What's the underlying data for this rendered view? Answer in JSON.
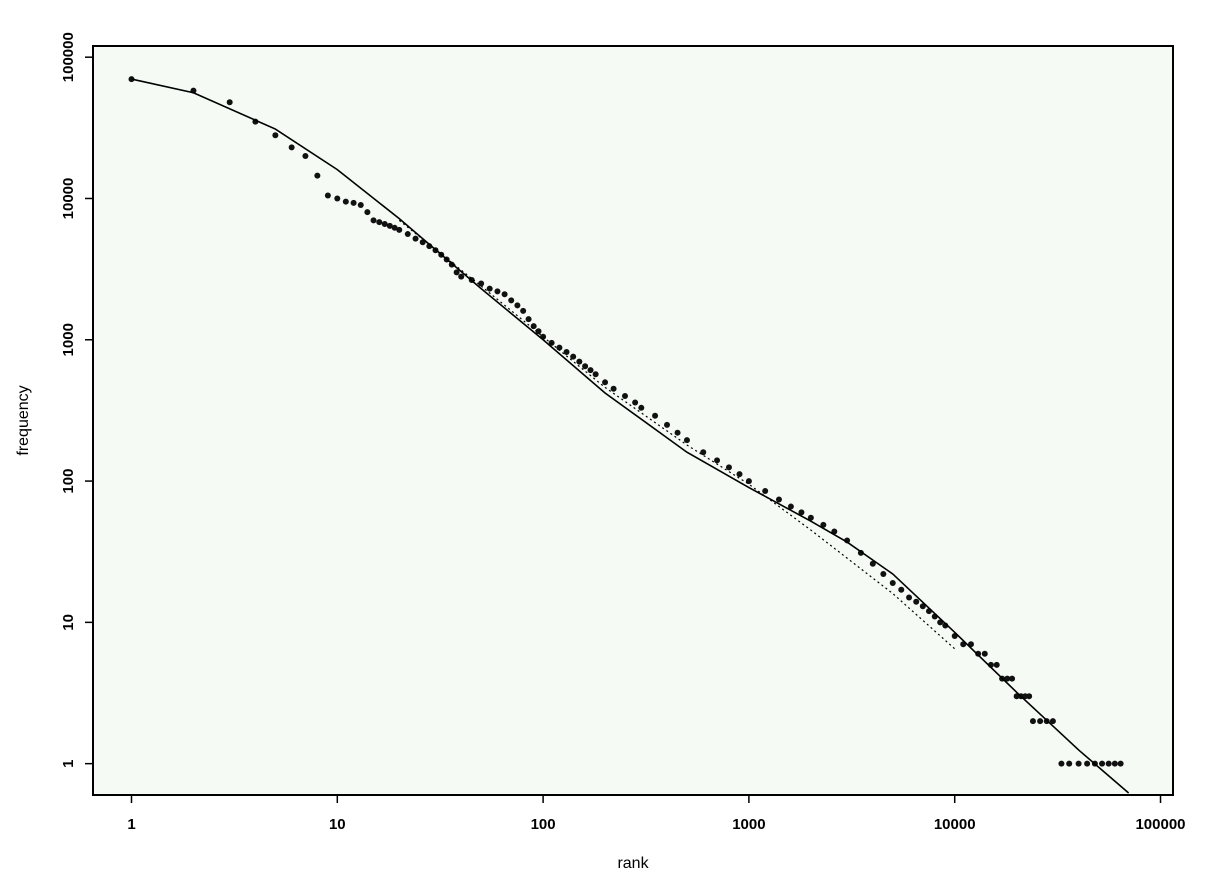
{
  "chart_data": {
    "type": "scatter",
    "title": "",
    "xlabel": "rank",
    "ylabel": "frequency",
    "x_scale": "log",
    "y_scale": "log",
    "xlim": [
      0.65,
      115000
    ],
    "ylim": [
      0.6,
      120000
    ],
    "x_ticks": [
      1,
      10,
      100,
      1000,
      10000,
      100000
    ],
    "x_tick_labels": [
      "1",
      "10",
      "100",
      "1000",
      "10000",
      "100000"
    ],
    "y_ticks": [
      1,
      10,
      100,
      1000,
      10000,
      100000
    ],
    "y_tick_labels": [
      "1",
      "10",
      "100",
      "1000",
      "10000",
      "100000"
    ],
    "grid": false,
    "legend": "none",
    "background_color": "#f5faf5",
    "series": [
      {
        "kind": "points",
        "color": "#111111",
        "points": [
          [
            1,
            70000
          ],
          [
            2,
            58000
          ],
          [
            3,
            48000
          ],
          [
            4,
            35000
          ],
          [
            5,
            28000
          ],
          [
            6,
            23000
          ],
          [
            7,
            20000
          ],
          [
            8,
            14500
          ],
          [
            9,
            10500
          ],
          [
            10,
            10000
          ],
          [
            11,
            9500
          ],
          [
            12,
            9300
          ],
          [
            13,
            9000
          ],
          [
            14,
            8000
          ],
          [
            15,
            7000
          ],
          [
            16,
            6800
          ],
          [
            17,
            6600
          ],
          [
            18,
            6400
          ],
          [
            19,
            6200
          ],
          [
            20,
            6000
          ],
          [
            22,
            5600
          ],
          [
            24,
            5200
          ],
          [
            26,
            4900
          ],
          [
            28,
            4600
          ],
          [
            30,
            4300
          ],
          [
            32,
            4000
          ],
          [
            34,
            3700
          ],
          [
            36,
            3400
          ],
          [
            38,
            3000
          ],
          [
            40,
            2800
          ],
          [
            45,
            2650
          ],
          [
            50,
            2500
          ],
          [
            55,
            2300
          ],
          [
            60,
            2200
          ],
          [
            65,
            2100
          ],
          [
            70,
            1900
          ],
          [
            75,
            1750
          ],
          [
            80,
            1600
          ],
          [
            85,
            1400
          ],
          [
            90,
            1250
          ],
          [
            95,
            1150
          ],
          [
            100,
            1050
          ],
          [
            110,
            950
          ],
          [
            120,
            880
          ],
          [
            130,
            820
          ],
          [
            140,
            760
          ],
          [
            150,
            700
          ],
          [
            160,
            650
          ],
          [
            170,
            610
          ],
          [
            180,
            570
          ],
          [
            200,
            500
          ],
          [
            220,
            450
          ],
          [
            250,
            400
          ],
          [
            280,
            360
          ],
          [
            300,
            330
          ],
          [
            350,
            290
          ],
          [
            400,
            250
          ],
          [
            450,
            220
          ],
          [
            500,
            195
          ],
          [
            600,
            160
          ],
          [
            700,
            140
          ],
          [
            800,
            125
          ],
          [
            900,
            112
          ],
          [
            1000,
            100
          ],
          [
            1200,
            85
          ],
          [
            1400,
            74
          ],
          [
            1600,
            66
          ],
          [
            1800,
            60
          ],
          [
            2000,
            55
          ],
          [
            2300,
            49
          ],
          [
            2600,
            44
          ],
          [
            3000,
            38
          ],
          [
            3500,
            31
          ],
          [
            4000,
            26
          ],
          [
            4500,
            22
          ],
          [
            5000,
            19
          ],
          [
            5500,
            17
          ],
          [
            6000,
            15
          ],
          [
            6500,
            14
          ],
          [
            7000,
            13
          ],
          [
            7500,
            12
          ],
          [
            8000,
            11
          ],
          [
            8500,
            10
          ],
          [
            9000,
            9.5
          ],
          [
            10000,
            8
          ],
          [
            11000,
            7
          ],
          [
            12000,
            7
          ],
          [
            13000,
            6
          ],
          [
            14000,
            6
          ],
          [
            15000,
            5
          ],
          [
            16000,
            5
          ],
          [
            17000,
            4
          ],
          [
            18000,
            4
          ],
          [
            19000,
            4
          ],
          [
            20000,
            3
          ],
          [
            21000,
            3
          ],
          [
            22000,
            3
          ],
          [
            23000,
            3
          ],
          [
            24000,
            2
          ],
          [
            26000,
            2
          ],
          [
            28000,
            2
          ],
          [
            30000,
            2
          ],
          [
            33000,
            1
          ],
          [
            36000,
            1
          ],
          [
            40000,
            1
          ],
          [
            44000,
            1
          ],
          [
            48000,
            1
          ],
          [
            52000,
            1
          ],
          [
            56000,
            1
          ],
          [
            60000,
            1
          ],
          [
            64000,
            1
          ]
        ]
      },
      {
        "kind": "solid-line",
        "color": "#000000",
        "points": [
          [
            1,
            70000
          ],
          [
            2,
            56000
          ],
          [
            5,
            31000
          ],
          [
            10,
            16000
          ],
          [
            20,
            7200
          ],
          [
            50,
            2300
          ],
          [
            100,
            1000
          ],
          [
            200,
            420
          ],
          [
            500,
            160
          ],
          [
            1000,
            90
          ],
          [
            2000,
            52
          ],
          [
            3000,
            37
          ],
          [
            5000,
            22
          ],
          [
            10000,
            8.5
          ],
          [
            20000,
            3.2
          ],
          [
            40000,
            1.25
          ],
          [
            70000,
            0.62
          ]
        ]
      },
      {
        "kind": "dotted-line",
        "color": "#000000",
        "points": [
          [
            20,
            7000
          ],
          [
            50,
            2400
          ],
          [
            100,
            1050
          ],
          [
            200,
            460
          ],
          [
            500,
            180
          ],
          [
            1000,
            95
          ],
          [
            2000,
            45
          ],
          [
            5000,
            16
          ],
          [
            10000,
            6.5
          ]
        ]
      }
    ]
  }
}
